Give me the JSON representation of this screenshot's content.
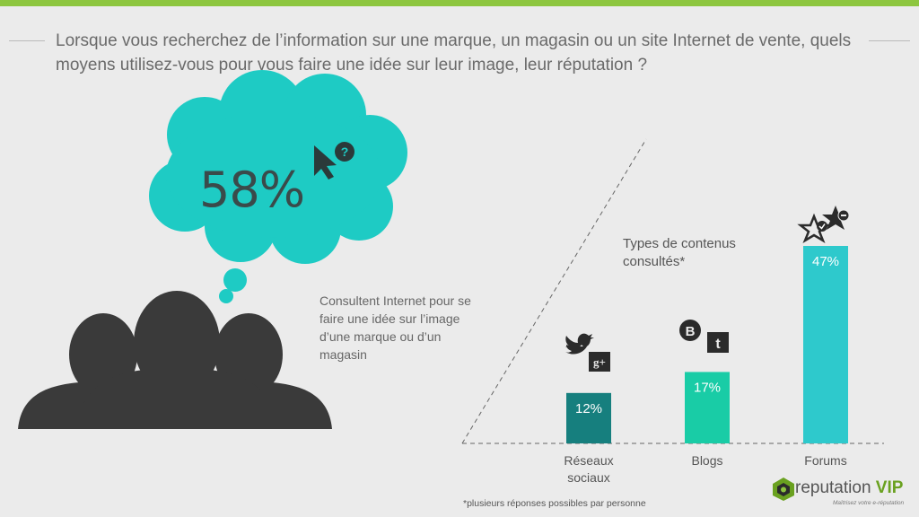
{
  "question": "Lorsque vous recherchez de l’information sur une marque, un magasin ou un site Internet de vente, quels moyens utilisez-vous pour vous faire une idée sur leur image, leur réputation ?",
  "headline_percent": "58%",
  "headline_caption": "Consultent Internet pour se faire une idée sur l’image d’une marque ou d’un magasin",
  "footnote": "*plusieurs réponses possibles par personne",
  "brand": {
    "name": "reputation",
    "name_accent": "VIP",
    "tagline": "Maîtrisez votre e-réputation"
  },
  "colors": {
    "accent_green": "#8dc63f",
    "cloud": "#1ecbc4",
    "bar_social": "#167f7e",
    "bar_blogs": "#19cca6",
    "bar_forums": "#2ec9cc",
    "silhouette": "#3a3a3a"
  },
  "icons": [
    "question-cursor-icon",
    "twitter-icon",
    "google-plus-icon",
    "blogger-icon",
    "tumblr-icon",
    "star-check-icon",
    "star-minus-icon",
    "reputation-vip-logo-icon"
  ],
  "chart_data": {
    "type": "bar",
    "title": "Types de contenus consultés*",
    "categories": [
      "Réseaux sociaux",
      "Blogs",
      "Forums"
    ],
    "category_lines": [
      [
        "Réseaux",
        "sociaux"
      ],
      [
        "Blogs"
      ],
      [
        "Forums"
      ]
    ],
    "values": [
      12,
      17,
      47
    ],
    "value_labels": [
      "12%",
      "17%",
      "47%"
    ],
    "colors": [
      "#167f7e",
      "#19cca6",
      "#2ec9cc"
    ],
    "ylim": [
      0,
      50
    ],
    "grid": false
  }
}
